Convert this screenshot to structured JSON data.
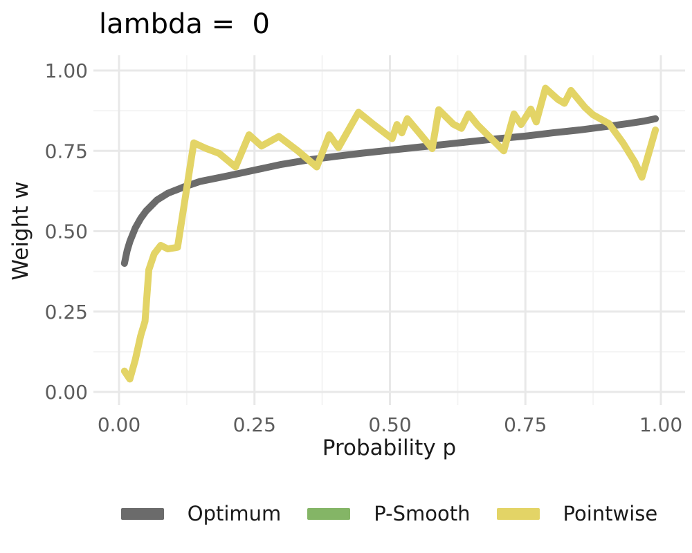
{
  "chart_data": {
    "type": "line",
    "title": "lambda =  0",
    "xlabel": "Probability p",
    "ylabel": "Weight w",
    "xlim": [
      0,
      1
    ],
    "ylim": [
      0,
      1
    ],
    "x_ticks": [
      0.0,
      0.25,
      0.5,
      0.75,
      1.0
    ],
    "y_ticks": [
      0.0,
      0.25,
      0.5,
      0.75,
      1.0
    ],
    "x_minor_ticks": [
      0.125,
      0.375,
      0.625,
      0.875
    ],
    "y_minor_ticks": [
      0.125,
      0.375,
      0.625,
      0.875
    ],
    "grid": true,
    "legend_position": "bottom",
    "series": [
      {
        "name": "Optimum",
        "color": "#6b6b6b",
        "points": [
          [
            0.01,
            0.4
          ],
          [
            0.015,
            0.44
          ],
          [
            0.02,
            0.468
          ],
          [
            0.03,
            0.51
          ],
          [
            0.04,
            0.54
          ],
          [
            0.05,
            0.563
          ],
          [
            0.07,
            0.597
          ],
          [
            0.09,
            0.618
          ],
          [
            0.12,
            0.638
          ],
          [
            0.15,
            0.655
          ],
          [
            0.2,
            0.672
          ],
          [
            0.25,
            0.69
          ],
          [
            0.3,
            0.708
          ],
          [
            0.35,
            0.722
          ],
          [
            0.4,
            0.733
          ],
          [
            0.45,
            0.743
          ],
          [
            0.5,
            0.752
          ],
          [
            0.55,
            0.761
          ],
          [
            0.6,
            0.77
          ],
          [
            0.65,
            0.779
          ],
          [
            0.7,
            0.788
          ],
          [
            0.75,
            0.796
          ],
          [
            0.8,
            0.806
          ],
          [
            0.85,
            0.815
          ],
          [
            0.9,
            0.826
          ],
          [
            0.94,
            0.835
          ],
          [
            0.97,
            0.843
          ],
          [
            0.99,
            0.85
          ]
        ]
      },
      {
        "name": "P-Smooth",
        "color": "#84b566",
        "points": []
      },
      {
        "name": "Pointwise",
        "color": "#e3d466",
        "points": [
          [
            0.01,
            0.065
          ],
          [
            0.02,
            0.04
          ],
          [
            0.03,
            0.1
          ],
          [
            0.04,
            0.175
          ],
          [
            0.048,
            0.22
          ],
          [
            0.055,
            0.38
          ],
          [
            0.065,
            0.43
          ],
          [
            0.077,
            0.456
          ],
          [
            0.09,
            0.445
          ],
          [
            0.108,
            0.45
          ],
          [
            0.138,
            0.775
          ],
          [
            0.16,
            0.758
          ],
          [
            0.185,
            0.742
          ],
          [
            0.215,
            0.7
          ],
          [
            0.24,
            0.8
          ],
          [
            0.263,
            0.765
          ],
          [
            0.295,
            0.795
          ],
          [
            0.33,
            0.75
          ],
          [
            0.365,
            0.7
          ],
          [
            0.388,
            0.8
          ],
          [
            0.405,
            0.76
          ],
          [
            0.442,
            0.87
          ],
          [
            0.47,
            0.832
          ],
          [
            0.504,
            0.788
          ],
          [
            0.513,
            0.832
          ],
          [
            0.522,
            0.806
          ],
          [
            0.532,
            0.85
          ],
          [
            0.557,
            0.8
          ],
          [
            0.578,
            0.757
          ],
          [
            0.59,
            0.878
          ],
          [
            0.617,
            0.833
          ],
          [
            0.632,
            0.82
          ],
          [
            0.645,
            0.865
          ],
          [
            0.662,
            0.83
          ],
          [
            0.71,
            0.75
          ],
          [
            0.729,
            0.865
          ],
          [
            0.742,
            0.832
          ],
          [
            0.76,
            0.88
          ],
          [
            0.77,
            0.84
          ],
          [
            0.787,
            0.945
          ],
          [
            0.81,
            0.91
          ],
          [
            0.822,
            0.898
          ],
          [
            0.834,
            0.938
          ],
          [
            0.86,
            0.885
          ],
          [
            0.875,
            0.862
          ],
          [
            0.904,
            0.835
          ],
          [
            0.93,
            0.775
          ],
          [
            0.952,
            0.715
          ],
          [
            0.965,
            0.668
          ],
          [
            0.99,
            0.815
          ]
        ]
      }
    ]
  }
}
